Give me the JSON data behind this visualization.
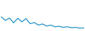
{
  "x": [
    0,
    1,
    2,
    3,
    4,
    5,
    6,
    7,
    8,
    9,
    10,
    11,
    12,
    13,
    14,
    15,
    16,
    17,
    18,
    19,
    20
  ],
  "y": [
    10.0,
    7.5,
    9.2,
    5.8,
    9.0,
    6.5,
    8.8,
    5.2,
    6.0,
    4.2,
    5.0,
    3.5,
    4.2,
    3.0,
    3.4,
    2.6,
    3.0,
    2.3,
    2.6,
    2.0,
    2.2
  ],
  "line_color": "#1a8fc1",
  "line_width": 0.9,
  "background_color": "#ffffff",
  "ylim": [
    0,
    22
  ],
  "xlim": [
    -0.3,
    20.3
  ]
}
